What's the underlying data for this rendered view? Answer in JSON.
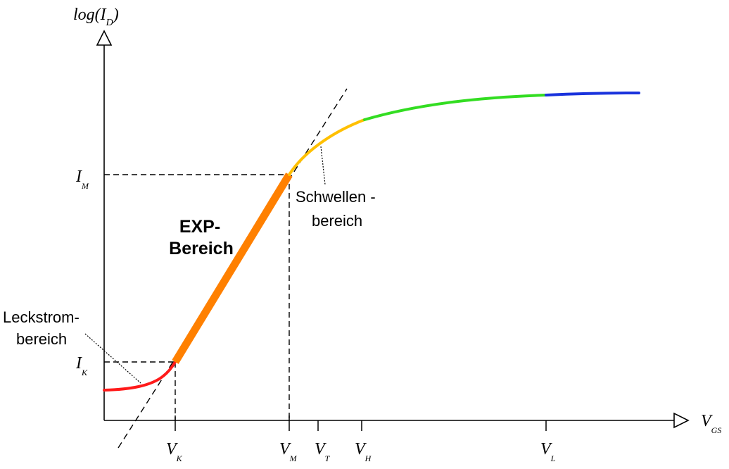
{
  "axes": {
    "y_label": "log(I",
    "y_label_sub": "D",
    "y_label_close": ")",
    "x_label": "V",
    "x_label_sub": "GS"
  },
  "y_markers": [
    {
      "main": "I",
      "sub": "M"
    },
    {
      "main": "I",
      "sub": "K"
    }
  ],
  "x_markers": [
    {
      "main": "V",
      "sub": "K"
    },
    {
      "main": "V",
      "sub": "M"
    },
    {
      "main": "V",
      "sub": "T"
    },
    {
      "main": "V",
      "sub": "H"
    },
    {
      "main": "V",
      "sub": "L"
    }
  ],
  "regions": {
    "exp_line1": "EXP-",
    "exp_line2": "Bereich",
    "threshold_line1": "Schwellen -",
    "threshold_line2": "bereich",
    "leakage_line1": "Leckstrom-",
    "leakage_line2": "bereich"
  },
  "colors": {
    "leakage": "#ff1a1a",
    "exp": "#ff8000",
    "threshold": "#ffc000",
    "transition": "#33dd22",
    "saturation": "#1a33dd"
  }
}
